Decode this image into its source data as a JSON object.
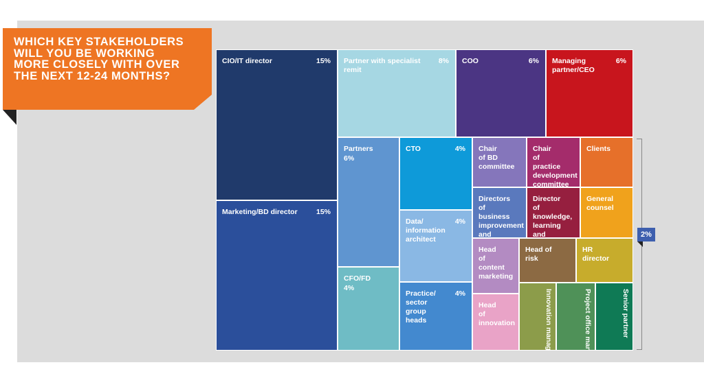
{
  "question": {
    "lines": [
      "WHICH KEY STAKEHOLDERS",
      "WILL YOU BE WORKING",
      "MORE CLOSELY WITH OVER",
      "THE NEXT 12-24 MONTHS?"
    ]
  },
  "chart_data": {
    "type": "treemap",
    "unit": "%",
    "items": [
      {
        "label": "CIO/IT director",
        "value": 15,
        "value_label": "15%",
        "color": "#203a6b"
      },
      {
        "label": "Marketing/BD director",
        "value": 15,
        "value_label": "15%",
        "color": "#2b4f9b"
      },
      {
        "label": "Partner with specialist remit",
        "value": 8,
        "value_label": "8%",
        "color": "#a6d7e3"
      },
      {
        "label": "COO",
        "value": 6,
        "value_label": "6%",
        "color": "#4b3583"
      },
      {
        "label": "Managing partner/CEO",
        "value": 6,
        "value_label": "6%",
        "color": "#c8151d"
      },
      {
        "label": "Partners",
        "value": 6,
        "value_label": "6%",
        "color": "#5f95d0"
      },
      {
        "label": "CFO/FD",
        "value": 4,
        "value_label": "4%",
        "color": "#6fbcc5"
      },
      {
        "label": "CTO",
        "value": 4,
        "value_label": "4%",
        "color": "#0e9ad9"
      },
      {
        "label": "Data/ information architect",
        "value": 4,
        "value_label": "4%",
        "color": "#8ab8e4"
      },
      {
        "label": "Practice/ sector group heads",
        "value": 4,
        "value_label": "4%",
        "color": "#4389cf"
      },
      {
        "label": "Chair of BD committee",
        "value": 2,
        "color": "#8576bb"
      },
      {
        "label": "Chair of practice development committee",
        "value": 2,
        "color": "#a42c6b"
      },
      {
        "label": "Clients",
        "value": 2,
        "color": "#e6702a"
      },
      {
        "label": "Directors of business improvement and change",
        "value": 2,
        "color": "#5a79bd"
      },
      {
        "label": "Director of knowledge, learning and development",
        "value": 2,
        "color": "#961f3f"
      },
      {
        "label": "General counsel",
        "value": 2,
        "color": "#f0a21c"
      },
      {
        "label": "Head of content marketing",
        "value": 2,
        "color": "#b38bc2"
      },
      {
        "label": "Head of risk",
        "value": 2,
        "color": "#8c6a43"
      },
      {
        "label": "HR director",
        "value": 2,
        "color": "#c7ac2c"
      },
      {
        "label": "Head of innovation",
        "value": 2,
        "color": "#e9a3c7"
      },
      {
        "label": "Innovation manager",
        "value": 2,
        "color": "#8c9c4a"
      },
      {
        "label": "Project office manager",
        "value": 2,
        "color": "#4f9158"
      },
      {
        "label": "Senior partner",
        "value": 2,
        "color": "#0f7a55"
      }
    ],
    "bracket_label": "2%"
  }
}
